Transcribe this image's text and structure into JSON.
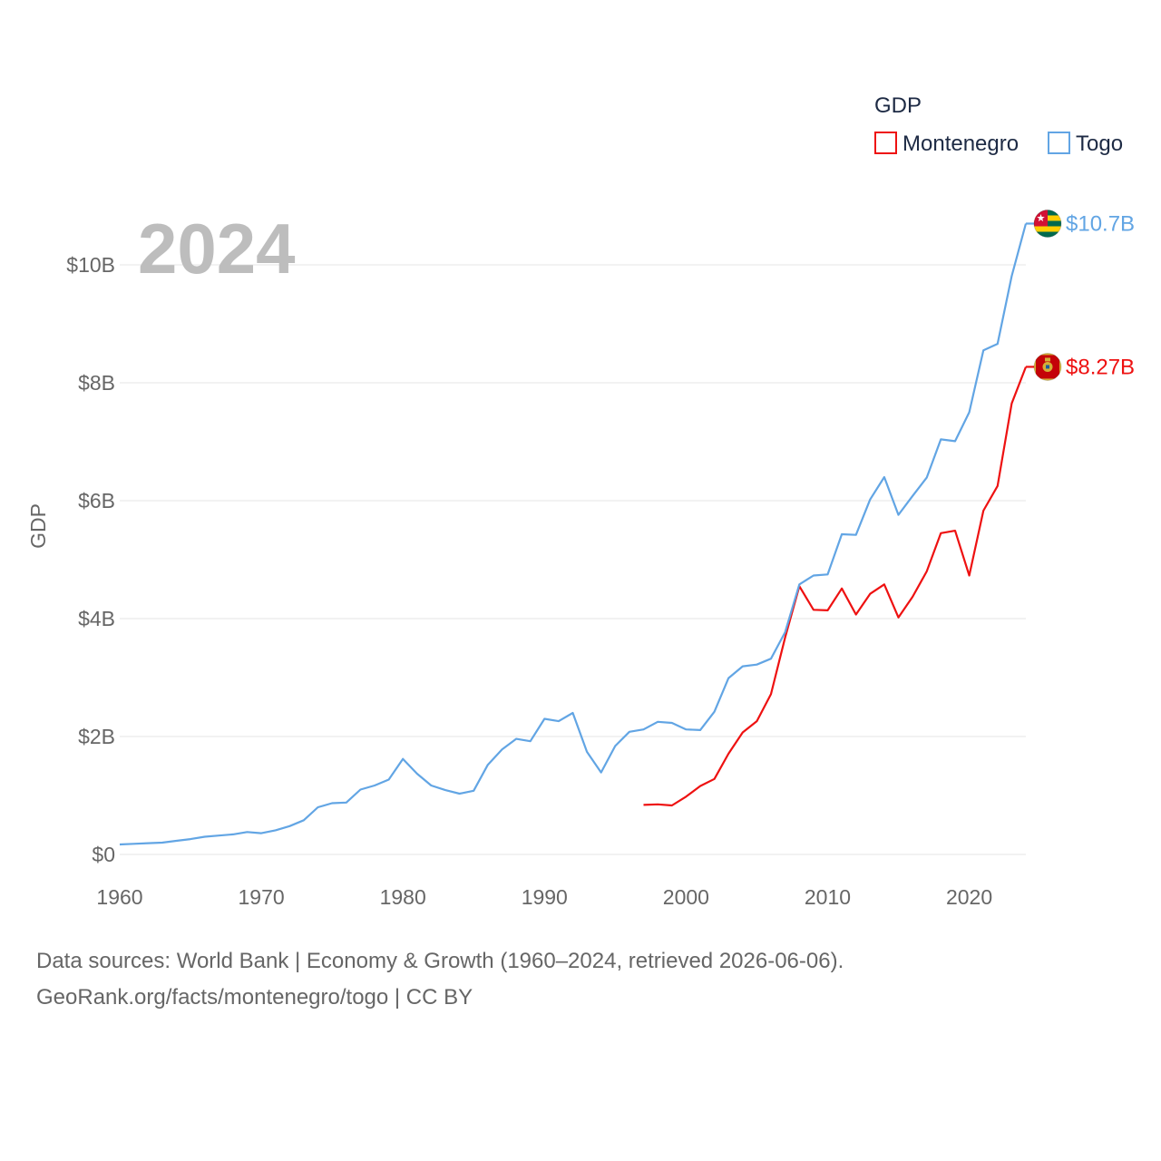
{
  "chart_data": {
    "type": "line",
    "ylabel": "GDP",
    "xlabel": "",
    "year_label": "2024",
    "legend": {
      "title": "GDP",
      "entries": [
        "Montenegro",
        "Togo"
      ],
      "position": "top-right"
    },
    "xlim": [
      1960,
      2024
    ],
    "ylim": [
      0,
      10000000000
    ],
    "x_ticks": [
      1960,
      1970,
      1980,
      1990,
      2000,
      2010,
      2020
    ],
    "y_ticks": [
      {
        "value": 0,
        "label": "$0"
      },
      {
        "value": 2000000000,
        "label": "$2B"
      },
      {
        "value": 4000000000,
        "label": "$4B"
      },
      {
        "value": 6000000000,
        "label": "$6B"
      },
      {
        "value": 8000000000,
        "label": "$8B"
      },
      {
        "value": 10000000000,
        "label": "$10B"
      }
    ],
    "grid": true,
    "series": [
      {
        "name": "Montenegro",
        "color": "#ee1111",
        "end_label": "$8.27B",
        "flag": "montenegro-flag",
        "x": [
          1997,
          1998,
          1999,
          2000,
          2001,
          2002,
          2003,
          2004,
          2005,
          2006,
          2007,
          2008,
          2009,
          2010,
          2011,
          2012,
          2013,
          2014,
          2015,
          2016,
          2017,
          2018,
          2019,
          2020,
          2021,
          2022,
          2023,
          2024
        ],
        "values": [
          0.84,
          0.85,
          0.83,
          0.98,
          1.16,
          1.28,
          1.71,
          2.07,
          2.26,
          2.72,
          3.68,
          4.55,
          4.15,
          4.14,
          4.51,
          4.07,
          4.42,
          4.58,
          4.02,
          4.37,
          4.8,
          5.45,
          5.49,
          4.73,
          5.83,
          6.25,
          7.65,
          8.27
        ]
      },
      {
        "name": "Togo",
        "color": "#62a5e4",
        "end_label": "$10.7B",
        "flag": "togo-flag",
        "x": [
          1960,
          1961,
          1962,
          1963,
          1964,
          1965,
          1966,
          1967,
          1968,
          1969,
          1970,
          1971,
          1972,
          1973,
          1974,
          1975,
          1976,
          1977,
          1978,
          1979,
          1980,
          1981,
          1982,
          1983,
          1984,
          1985,
          1986,
          1987,
          1988,
          1989,
          1990,
          1991,
          1992,
          1993,
          1994,
          1995,
          1996,
          1997,
          1998,
          1999,
          2000,
          2001,
          2002,
          2003,
          2004,
          2005,
          2006,
          2007,
          2008,
          2009,
          2010,
          2011,
          2012,
          2013,
          2014,
          2015,
          2016,
          2017,
          2018,
          2019,
          2020,
          2021,
          2022,
          2023,
          2024
        ],
        "values": [
          0.17,
          0.18,
          0.19,
          0.2,
          0.23,
          0.26,
          0.3,
          0.32,
          0.34,
          0.38,
          0.36,
          0.41,
          0.48,
          0.58,
          0.8,
          0.87,
          0.88,
          1.1,
          1.17,
          1.27,
          1.62,
          1.37,
          1.17,
          1.09,
          1.03,
          1.08,
          1.52,
          1.78,
          1.96,
          1.92,
          2.3,
          2.26,
          2.4,
          1.74,
          1.39,
          1.84,
          2.08,
          2.12,
          2.25,
          2.23,
          2.12,
          2.11,
          2.42,
          2.99,
          3.19,
          3.22,
          3.32,
          3.77,
          4.58,
          4.73,
          4.75,
          5.43,
          5.42,
          6.02,
          6.4,
          5.76,
          6.08,
          6.39,
          7.04,
          7.01,
          7.5,
          8.55,
          8.66,
          9.81,
          10.7
        ]
      }
    ]
  },
  "footer": {
    "line1": "Data sources: World Bank | Economy & Growth (1960–2024, retrieved 2026-06-06).",
    "line2": "GeoRank.org/facts/montenegro/togo | CC BY"
  }
}
